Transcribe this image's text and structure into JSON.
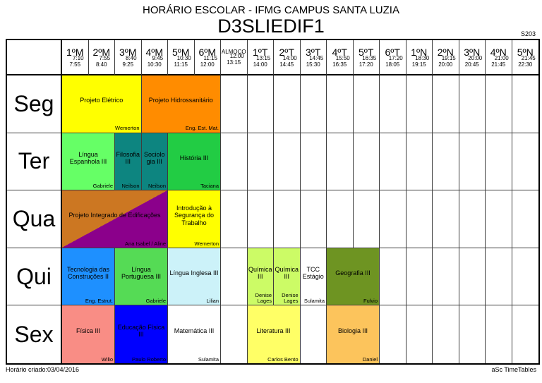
{
  "header": {
    "title": "HORÁRIO ESCOLAR - IFMG CAMPUS SANTA LUZIA",
    "class_name": "D3SLIEDIF1",
    "room": "S203"
  },
  "footer": {
    "created": "Horário criado:03/04/2016",
    "brand": "aSc TimeTables"
  },
  "columns": [
    {
      "label": "1ºM",
      "start": "7:10",
      "end": "7:55"
    },
    {
      "label": "2ºM",
      "start": "7:55",
      "end": "8:40"
    },
    {
      "label": "3ºM",
      "start": "8:40",
      "end": "9:25"
    },
    {
      "label": "4ºM",
      "start": "9:45",
      "end": "10:30"
    },
    {
      "label": "5ºM",
      "start": "10:30",
      "end": "11:15"
    },
    {
      "label": "6ºM",
      "start": "11:15",
      "end": "12:00"
    },
    {
      "label": "ALMOÇO",
      "start": "12:00",
      "end": "13:15"
    },
    {
      "label": "1ºT",
      "start": "13:15",
      "end": "14:00"
    },
    {
      "label": "2ºT",
      "start": "14:00",
      "end": "14:45"
    },
    {
      "label": "3ºT",
      "start": "14:45",
      "end": "15:30"
    },
    {
      "label": "4ºT",
      "start": "15:50",
      "end": "16:35"
    },
    {
      "label": "5ºT",
      "start": "16:35",
      "end": "17:20"
    },
    {
      "label": "6ºT",
      "start": "17:20",
      "end": "18:05"
    },
    {
      "label": "1ºN",
      "start": "18:30",
      "end": "19:15"
    },
    {
      "label": "2ºN",
      "start": "19:15",
      "end": "20:00"
    },
    {
      "label": "3ºN",
      "start": "20:00",
      "end": "20:45"
    },
    {
      "label": "4ºN",
      "start": "21:00",
      "end": "21:45"
    },
    {
      "label": "5ºN",
      "start": "21:45",
      "end": "22:30"
    }
  ],
  "schedule": [
    {
      "day": "Seg",
      "entries": [
        {
          "col": 1,
          "span": 3,
          "subject": "Projeto Elétrico",
          "teacher": "Wemerton",
          "color": "#FFFF00"
        },
        {
          "col": 4,
          "span": 3,
          "subject": "Projeto Hidrossanitário",
          "teacher": "Eng. Est. Mat.",
          "color": "#FF8C00"
        }
      ]
    },
    {
      "day": "Ter",
      "entries": [
        {
          "col": 1,
          "span": 2,
          "subject": "Língua Espanhola III",
          "teacher": "Gabriele",
          "color": "#66FF66"
        },
        {
          "col": 3,
          "span": 1,
          "subject": "Filosofia III",
          "teacher": "Neilson",
          "color": "#0D8580"
        },
        {
          "col": 4,
          "span": 1,
          "subject": "Sociologia III",
          "teacher": "Neilson",
          "color": "#0D8580"
        },
        {
          "col": 5,
          "span": 2,
          "subject": "História III",
          "teacher": "Taciana",
          "color": "#22CC44"
        }
      ]
    },
    {
      "day": "Qua",
      "entries": [
        {
          "col": 1,
          "span": 4,
          "subject": "Projeto Integrado de Edificações",
          "teacher": "Ana Isabel / Aline",
          "color": "#CC7722",
          "color2": "#8B008B"
        },
        {
          "col": 5,
          "span": 2,
          "subject": "Introdução à Segurança do Trabalho",
          "teacher": "Wemerton",
          "color": "#FFFF00"
        }
      ]
    },
    {
      "day": "Qui",
      "entries": [
        {
          "col": 1,
          "span": 2,
          "subject": "Tecnologia das Construções II",
          "teacher": "Eng. Estrut.",
          "color": "#1E90FF"
        },
        {
          "col": 3,
          "span": 2,
          "subject": "Língua Portuguesa III",
          "teacher": "Gabriele",
          "color": "#55DB55"
        },
        {
          "col": 5,
          "span": 2,
          "subject": "Língua Inglesa III",
          "teacher": "Lilian",
          "color": "#CCF2F9"
        },
        {
          "col": 8,
          "span": 1,
          "subject": "Química III",
          "teacher": "Denise Lages",
          "color": "#CCFB66"
        },
        {
          "col": 9,
          "span": 1,
          "subject": "Química III",
          "teacher": "Denise Lages",
          "color": "#CCFB66"
        },
        {
          "col": 10,
          "span": 1,
          "subject": "TCC Estágio",
          "teacher": "Sulamita",
          "color": "#FFFFFF"
        },
        {
          "col": 11,
          "span": 2,
          "subject": "Geografia III",
          "teacher": "Fulvio",
          "color": "#6E9422"
        }
      ]
    },
    {
      "day": "Sex",
      "entries": [
        {
          "col": 1,
          "span": 2,
          "subject": "Física III",
          "teacher": "Wilio",
          "color": "#F98D85"
        },
        {
          "col": 3,
          "span": 2,
          "subject": "Educação Física III",
          "teacher": "Paulo Roberto",
          "color": "#0000FF"
        },
        {
          "col": 5,
          "span": 2,
          "subject": "Matemática III",
          "teacher": "Sulamita",
          "color": "#FFFFFF"
        },
        {
          "col": 8,
          "span": 2,
          "subject": "Literatura III",
          "teacher": "Carlos Bento",
          "color": "#FFFF66"
        },
        {
          "col": 11,
          "span": 2,
          "subject": "Biologia III",
          "teacher": "Daniel",
          "color": "#FCC45C"
        }
      ]
    }
  ]
}
